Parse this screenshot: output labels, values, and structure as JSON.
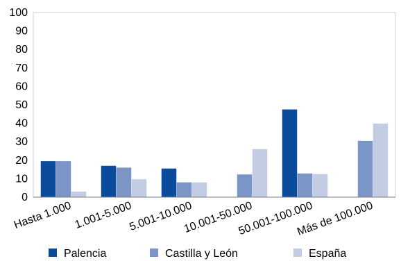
{
  "chart_data": {
    "type": "bar",
    "categories": [
      "Hasta 1.000",
      "1.001-5.000",
      "5.001-10.000",
      "10.001-50.000",
      "50.001-100.000",
      "Más de 100.000"
    ],
    "series": [
      {
        "name": "Palencia",
        "color": "#0b4b9c",
        "values": [
          19.5,
          17.0,
          15.5,
          0.2,
          47.5,
          0.2
        ]
      },
      {
        "name": "Castilla y León",
        "color": "#7b95c6",
        "values": [
          19.5,
          16.0,
          8.0,
          12.3,
          12.8,
          30.5
        ]
      },
      {
        "name": "España",
        "color": "#c2cde3",
        "values": [
          3.0,
          9.7,
          8.0,
          26.0,
          12.5,
          39.8
        ]
      }
    ],
    "ylim": [
      0,
      100
    ],
    "yticks": [
      0,
      10,
      20,
      30,
      40,
      50,
      60,
      70,
      80,
      90,
      100
    ],
    "grid": false,
    "legend_position": "bottom"
  }
}
